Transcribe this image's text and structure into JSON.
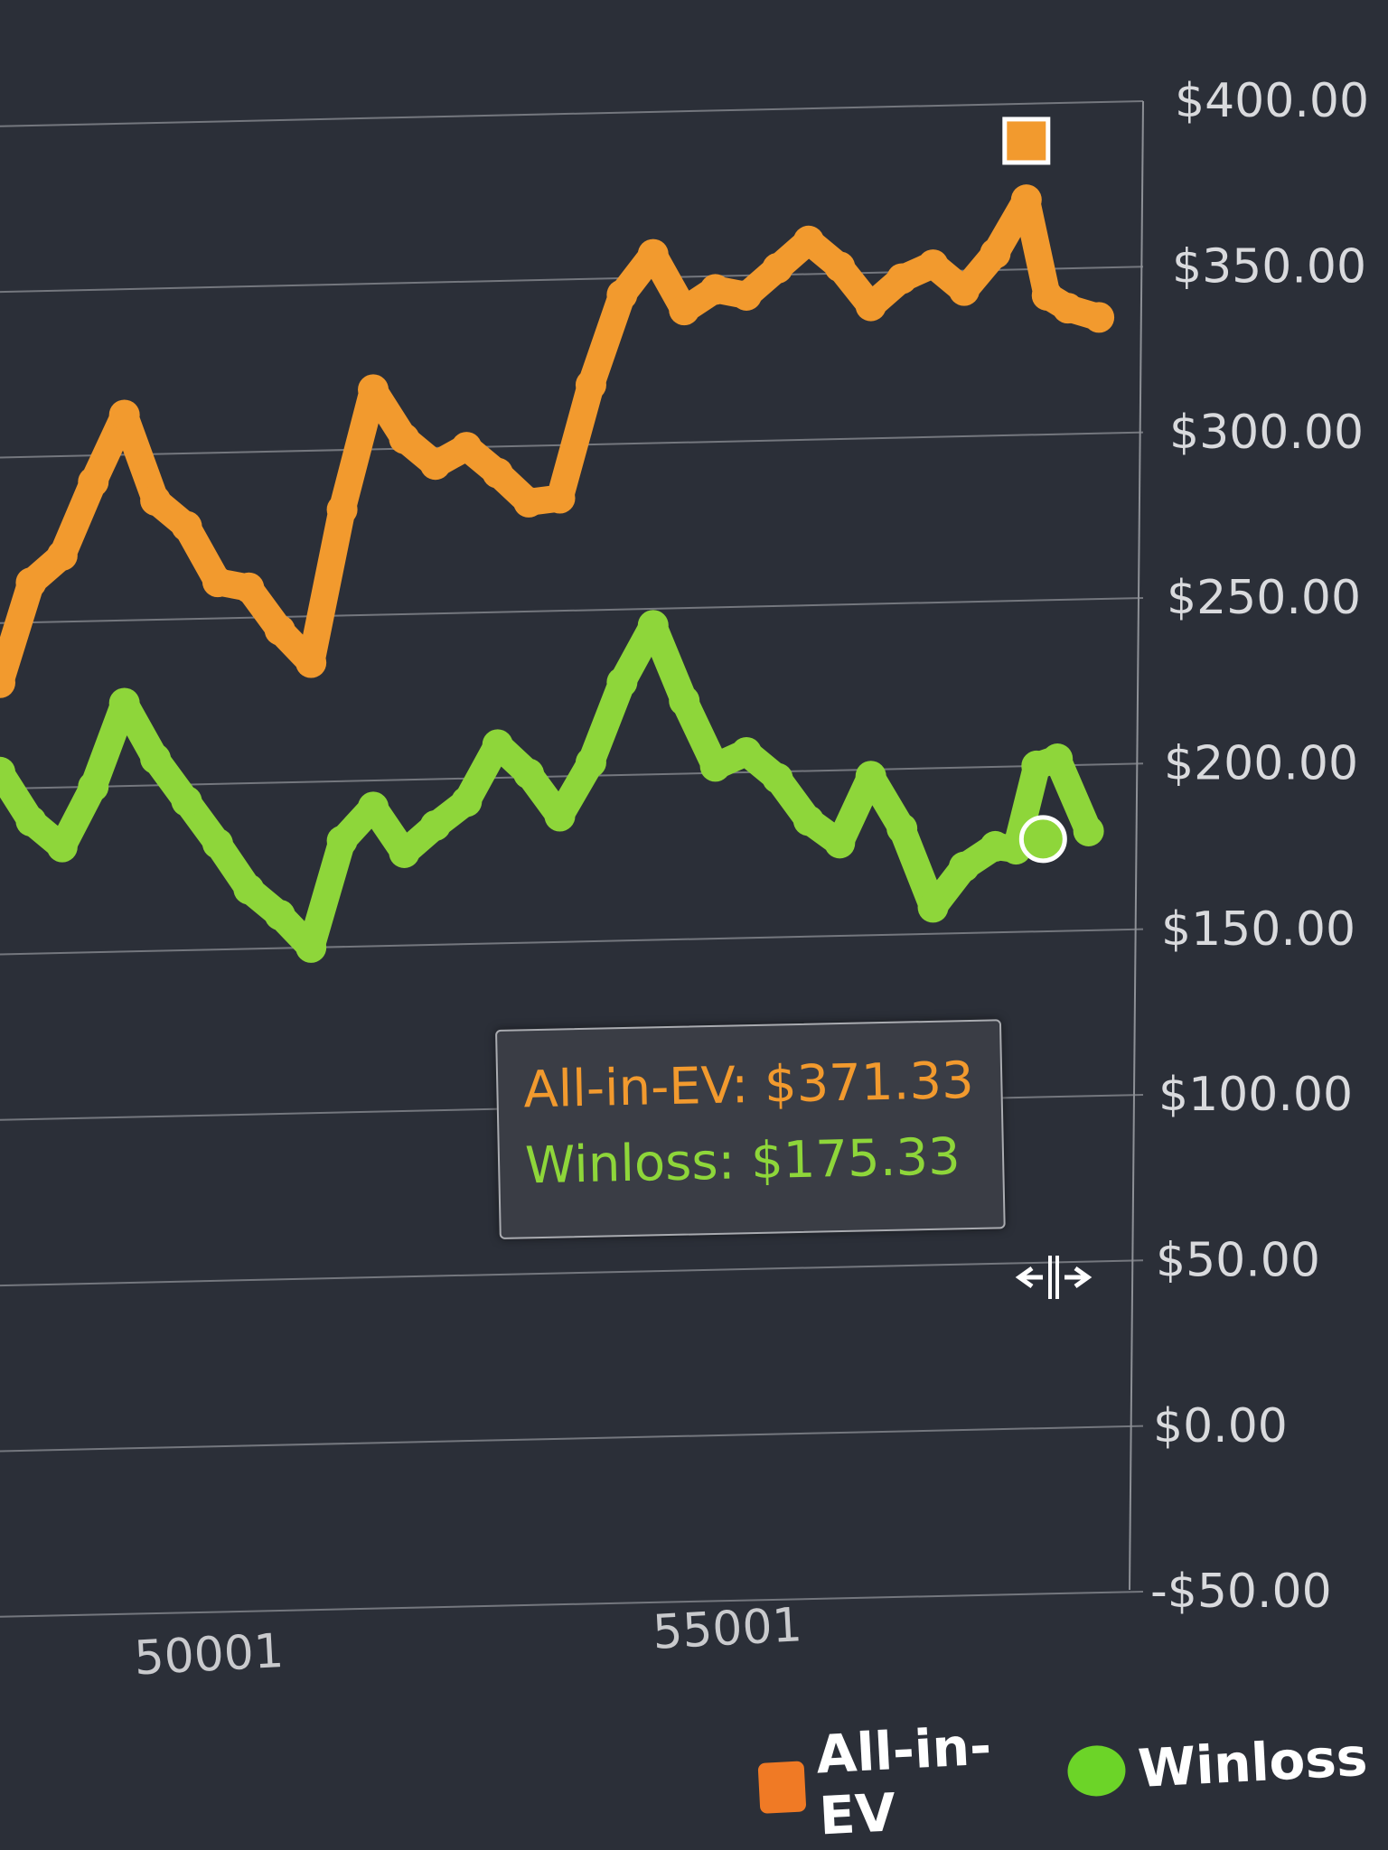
{
  "chart_data": {
    "type": "line",
    "ylim": [
      -50,
      400
    ],
    "y_ticks": [
      -50,
      0,
      50,
      100,
      150,
      200,
      250,
      300,
      350,
      400
    ],
    "y_tick_labels": [
      "-$50.00",
      "$0.00",
      "$50.00",
      "$100.00",
      "$150.00",
      "$200.00",
      "$250.00",
      "$300.00",
      "$350.00",
      "$400.00"
    ],
    "x_tick_labels": [
      "50001",
      "55001"
    ],
    "x_ticks": [
      50001,
      55001
    ],
    "xlim": [
      48000,
      59000
    ],
    "grid": true,
    "legend_position": "bottom-right",
    "series": [
      {
        "name": "All-in-EV",
        "color": "#f29a2e",
        "legend_color": "#f07a25",
        "x": [
          48000,
          48300,
          48600,
          48900,
          49200,
          49500,
          49800,
          50100,
          50400,
          50700,
          51000,
          51300,
          51600,
          51900,
          52200,
          52500,
          52800,
          53100,
          53400,
          53700,
          54000,
          54300,
          54600,
          54900,
          55200,
          55500,
          55800,
          56100,
          56400,
          56700,
          57000,
          57300,
          57600,
          57900,
          58100,
          58300,
          58600
        ],
        "values": [
          232,
          262,
          270,
          292,
          312,
          286,
          278,
          261,
          259,
          246,
          236,
          282,
          318,
          303,
          295,
          300,
          292,
          283,
          284,
          318,
          345,
          357,
          340,
          346,
          344,
          352,
          360,
          352,
          340,
          348,
          352,
          344,
          355,
          371,
          342,
          338,
          335
        ]
      },
      {
        "name": "Winloss",
        "color": "#8ed63a",
        "legend_color": "#6cd428",
        "x": [
          48000,
          48300,
          48600,
          48900,
          49200,
          49500,
          49800,
          50100,
          50400,
          50700,
          51000,
          51300,
          51600,
          51900,
          52200,
          52500,
          52800,
          53100,
          53400,
          53700,
          54000,
          54300,
          54600,
          54900,
          55200,
          55500,
          55800,
          56100,
          56400,
          56700,
          57000,
          57300,
          57600,
          57800,
          58000,
          58200,
          58500
        ],
        "values": [
          205,
          190,
          182,
          200,
          225,
          208,
          195,
          182,
          168,
          160,
          150,
          182,
          192,
          178,
          186,
          193,
          210,
          201,
          188,
          204,
          228,
          245,
          222,
          202,
          206,
          198,
          185,
          178,
          198,
          182,
          158,
          170,
          176,
          175,
          200,
          202,
          180
        ]
      }
    ],
    "tooltip": {
      "ev_text": "All-in-EV: $371.33",
      "winloss_text": "Winloss: $175.33"
    },
    "hover": {
      "ev_marker": {
        "x": 57900,
        "y": 371.33
      },
      "winloss_marker": {
        "x": 57800,
        "y": 175.33
      }
    }
  },
  "legend": {
    "ev_label": "All-in-EV",
    "winloss_label": "Winloss"
  },
  "colors": {
    "background": "#2b2f38",
    "grid": "#8d9096",
    "ev_line": "#f29a2e",
    "winloss_line": "#8ed63a",
    "marker": "#ffffff"
  }
}
